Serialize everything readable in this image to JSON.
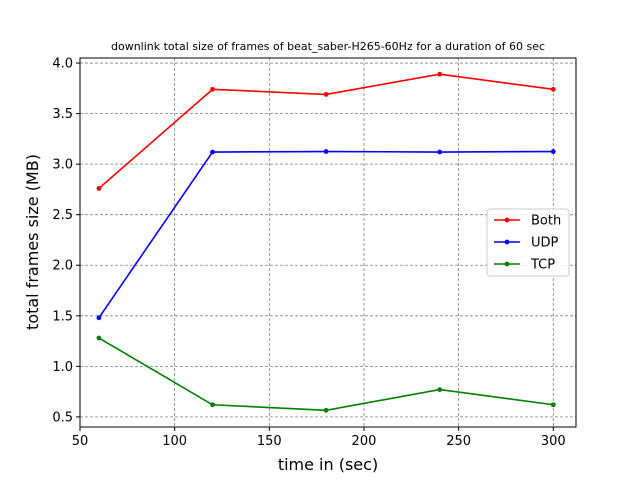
{
  "chart_data": {
    "type": "line",
    "title": "downlink total size of frames of beat_saber-H265-60Hz for a duration of 60 sec",
    "xlabel": "time in (sec)",
    "ylabel": "total frames size (MB)",
    "xlim": [
      50,
      312
    ],
    "ylim": [
      0.4,
      4.05
    ],
    "xticks": [
      50,
      100,
      150,
      200,
      250,
      300
    ],
    "yticks": [
      0.5,
      1.0,
      1.5,
      2.0,
      2.5,
      3.0,
      3.5,
      4.0
    ],
    "xtick_labels": [
      "50",
      "100",
      "150",
      "200",
      "250",
      "300"
    ],
    "ytick_labels": [
      "0.5",
      "1.0",
      "1.5",
      "2.0",
      "2.5",
      "3.0",
      "3.5",
      "4.0"
    ],
    "grid": true,
    "legend_position": "center-right",
    "x": [
      60,
      120,
      180,
      240,
      300
    ],
    "series": [
      {
        "name": "Both",
        "color": "#ff0000",
        "values": [
          2.76,
          3.74,
          3.69,
          3.89,
          3.74
        ]
      },
      {
        "name": "UDP",
        "color": "#0000ff",
        "values": [
          1.48,
          3.12,
          3.125,
          3.12,
          3.125
        ]
      },
      {
        "name": "TCP",
        "color": "#008000",
        "values": [
          1.28,
          0.62,
          0.565,
          0.77,
          0.62
        ]
      }
    ]
  }
}
